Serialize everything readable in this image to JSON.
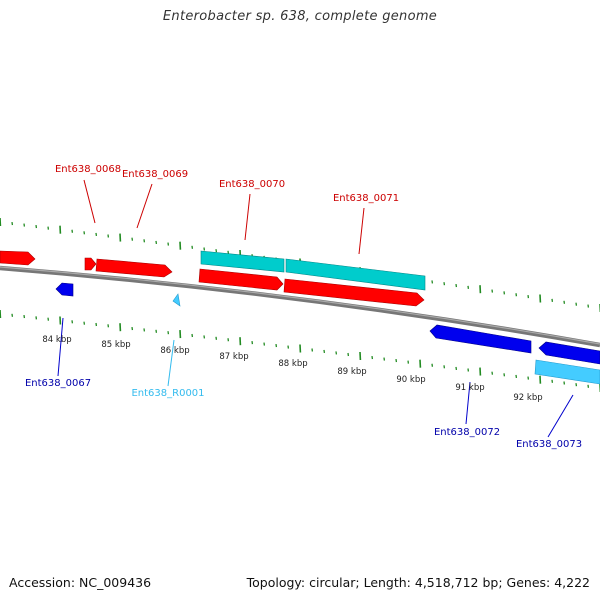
{
  "title": "Enterobacter sp. 638, complete genome",
  "footer": {
    "accession": "Accession: NC_009436",
    "summary": "Topology: circular; Length: 4,518,712 bp; Genes: 4,222"
  },
  "colors": {
    "forward_cds": "#ff0000",
    "reverse_cds": "#0000ee",
    "forward_rna": "#00cccc",
    "reverse_rna": "#44ccff",
    "tick": "#228b22",
    "backbone": "#888888"
  },
  "scale": {
    "unit": "kbp",
    "labels": [
      "84 kbp",
      "85 kbp",
      "86 kbp",
      "87 kbp",
      "88 kbp",
      "89 kbp",
      "90 kbp",
      "91 kbp",
      "92 kbp"
    ]
  },
  "gene_labels": [
    {
      "text": "Ent638_0068",
      "strand": "forward"
    },
    {
      "text": "Ent638_0069",
      "strand": "forward"
    },
    {
      "text": "Ent638_0070",
      "strand": "forward"
    },
    {
      "text": "Ent638_0071",
      "strand": "forward"
    },
    {
      "text": "Ent638_0067",
      "strand": "reverse"
    },
    {
      "text": "Ent638_R0001",
      "strand": "reverse-rna"
    },
    {
      "text": "Ent638_0072",
      "strand": "reverse"
    },
    {
      "text": "Ent638_0073",
      "strand": "reverse"
    }
  ]
}
